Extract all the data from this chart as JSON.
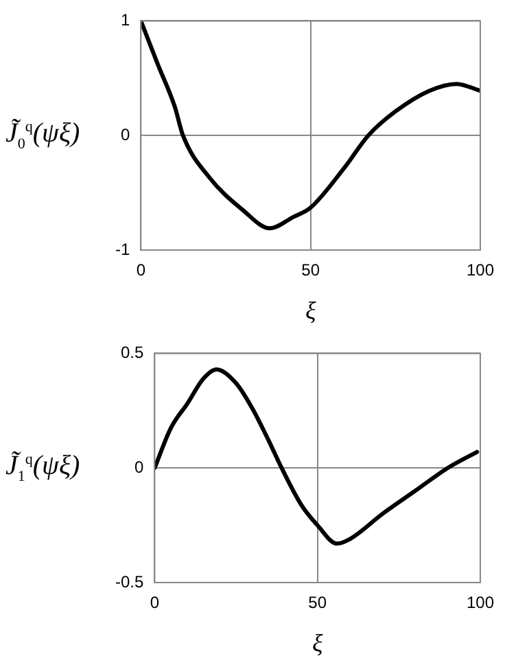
{
  "chart_data": [
    {
      "type": "line",
      "xlabel": "ξ",
      "ylabel": "J̃$_{0}$$^{q}$(ψξ)",
      "x": [
        0,
        5,
        10,
        12.4,
        20,
        30,
        38,
        45,
        50,
        60,
        67,
        75,
        85,
        93,
        100
      ],
      "series": [
        {
          "color": "#000000",
          "values": [
            1,
            0.62,
            0.25,
            0,
            -0.36,
            -0.65,
            -0.81,
            -0.71,
            -0.63,
            -0.28,
            0,
            0.21,
            0.39,
            0.45,
            0.39
          ]
        }
      ],
      "xlim": [
        0,
        100
      ],
      "xticks": [
        0,
        50,
        100
      ],
      "ylim": [
        -1,
        1
      ],
      "yticks": [
        -1,
        0,
        1
      ],
      "grid": true,
      "legend": false,
      "marker": "none",
      "line_style": "solid"
    },
    {
      "type": "line",
      "xlabel": "ξ",
      "ylabel": "J̃$_{1}$$^{q}$(ψξ)",
      "x": [
        0,
        5,
        10,
        15,
        19,
        25,
        30,
        35,
        39,
        45,
        50,
        56,
        60,
        70,
        80,
        90,
        99
      ],
      "series": [
        {
          "color": "#000000",
          "values": [
            0,
            0.175,
            0.28,
            0.39,
            0.43,
            0.37,
            0.26,
            0.12,
            0,
            -0.16,
            -0.25,
            -0.33,
            -0.31,
            -0.2,
            -0.1,
            0,
            0.07
          ]
        }
      ],
      "xlim": [
        0,
        100
      ],
      "xticks": [
        0,
        50,
        100
      ],
      "ylim": [
        -0.5,
        0.5
      ],
      "yticks": [
        -0.5,
        0,
        0.5
      ],
      "grid": true,
      "legend": false,
      "marker": "none",
      "line_style": "solid"
    }
  ]
}
